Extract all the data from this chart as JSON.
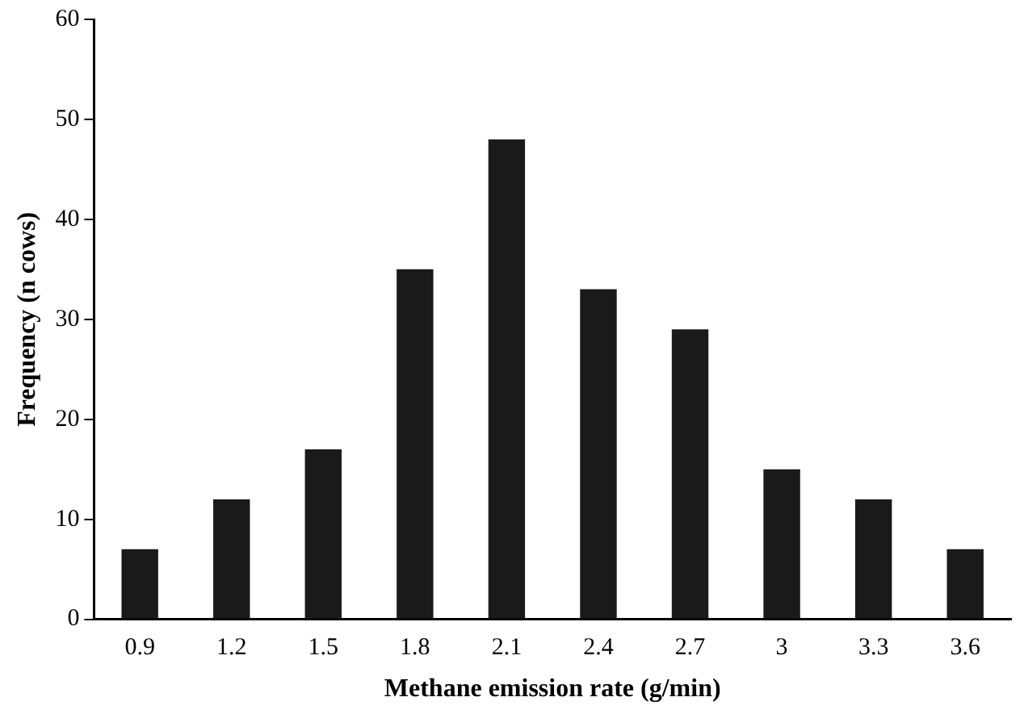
{
  "chart_data": {
    "type": "bar",
    "xlabel": "Methane emission rate (g/min)",
    "ylabel": "Frequency (n cows)",
    "categories": [
      "0.9",
      "1.2",
      "1.5",
      "1.8",
      "2.1",
      "2.4",
      "2.7",
      "3",
      "3.3",
      "3.6"
    ],
    "values": [
      7,
      12,
      17,
      35,
      48,
      33,
      29,
      15,
      12,
      7
    ],
    "color": "#1a1a1a",
    "ylim": [
      0,
      60
    ],
    "yticks": [
      0,
      10,
      20,
      30,
      40,
      50,
      60
    ],
    "grid": false,
    "legend": false
  }
}
